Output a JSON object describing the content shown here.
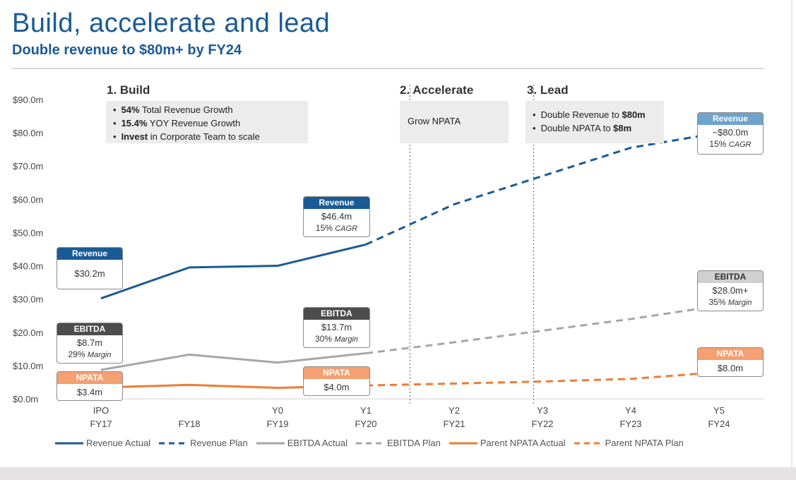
{
  "header": {
    "title": "Build, accelerate and lead",
    "subtitle": "Double revenue to $80m+ by FY24"
  },
  "phases": [
    {
      "label": "1. Build",
      "bullets": [
        {
          "bold": "54%",
          "text": " Total Revenue Growth"
        },
        {
          "bold": "15.4%",
          "text": " YOY Revenue Growth"
        },
        {
          "bold": "Invest",
          "text": " in Corporate Team to scale"
        }
      ]
    },
    {
      "label": "2. Accelerate",
      "text": "Grow NPATA"
    },
    {
      "label": "3. Lead",
      "bullets": [
        {
          "text": "Double Revenue to ",
          "bold": "$80m"
        },
        {
          "text": "Double NPATA to ",
          "bold": "$8m"
        }
      ]
    }
  ],
  "callouts": {
    "rev_ipo": {
      "title": "Revenue",
      "value": "$30.2m"
    },
    "ebitda_ipo": {
      "title": "EBITDA",
      "value": "$8.7m",
      "sub": "29%",
      "sub_italic": "Margin"
    },
    "npata_ipo": {
      "title": "NPATA",
      "value": "$3.4m"
    },
    "rev_y1": {
      "title": "Revenue",
      "value": "$46.4m",
      "sub": "15%",
      "sub_italic": "CAGR"
    },
    "ebitda_y1": {
      "title": "EBITDA",
      "value": "$13.7m",
      "sub": "30%",
      "sub_italic": "Margin"
    },
    "npata_y1": {
      "title": "NPATA",
      "value": "$4.0m"
    },
    "rev_y5": {
      "title": "Revenue",
      "value": "~$80.0m",
      "sub": "15%",
      "sub_italic": "CAGR"
    },
    "ebitda_y5": {
      "title": "EBITDA",
      "value": "$28.0m+",
      "sub": "35%",
      "sub_italic": "Margin"
    },
    "npata_y5": {
      "title": "NPATA",
      "value": "$8.0m"
    }
  },
  "colors": {
    "revenue": "#1a5b95",
    "revenue_light": "#6fa3cc",
    "ebitda": "#a6a6a6",
    "ebitda_dark": "#4d4d4d",
    "ebitda_light": "#d0d0d0",
    "npata": "#ed7d31",
    "npata_light": "#f4a073"
  },
  "chart_data": {
    "type": "line",
    "categories": [
      [
        "IPO",
        "FY17"
      ],
      [
        "",
        "FY18"
      ],
      [
        "Y0",
        "FY19"
      ],
      [
        "Y1",
        "FY20"
      ],
      [
        "Y2",
        "FY21"
      ],
      [
        "Y3",
        "FY22"
      ],
      [
        "Y4",
        "FY23"
      ],
      [
        "Y5",
        "FY24"
      ]
    ],
    "y_ticks": [
      "$0.0m",
      "$10.0m",
      "$20.0m",
      "$30.0m",
      "$40.0m",
      "$50.0m",
      "$60.0m",
      "$70.0m",
      "$80.0m",
      "$90.0m"
    ],
    "ylim": [
      0,
      90
    ],
    "series": [
      {
        "name": "Revenue Actual",
        "style": "solid",
        "color": "#1a5b95",
        "points": [
          [
            0,
            30.2
          ],
          [
            1,
            39.5
          ],
          [
            2,
            40.0
          ],
          [
            3,
            46.4
          ]
        ]
      },
      {
        "name": "Revenue Plan",
        "style": "dashed",
        "color": "#1a5b95",
        "points": [
          [
            3,
            46.4
          ],
          [
            4,
            58.5
          ],
          [
            5,
            67.0
          ],
          [
            6,
            75.5
          ],
          [
            7,
            80.0
          ]
        ]
      },
      {
        "name": "EBITDA Actual",
        "style": "solid",
        "color": "#a6a6a6",
        "points": [
          [
            0,
            8.7
          ],
          [
            1,
            13.3
          ],
          [
            2,
            10.9
          ],
          [
            3,
            13.7
          ]
        ]
      },
      {
        "name": "EBITDA Plan",
        "style": "dashed",
        "color": "#a6a6a6",
        "points": [
          [
            3,
            13.7
          ],
          [
            4,
            17.0
          ],
          [
            5,
            20.5
          ],
          [
            6,
            24.0
          ],
          [
            7,
            28.0
          ]
        ]
      },
      {
        "name": "Parent NPATA Actual",
        "style": "solid",
        "color": "#ed7d31",
        "points": [
          [
            0,
            3.4
          ],
          [
            1,
            4.2
          ],
          [
            2,
            3.3
          ],
          [
            3,
            4.0
          ]
        ]
      },
      {
        "name": "Parent NPATA Plan",
        "style": "dashed",
        "color": "#ed7d31",
        "points": [
          [
            3,
            4.0
          ],
          [
            4,
            4.6
          ],
          [
            5,
            5.2
          ],
          [
            6,
            6.0
          ],
          [
            7,
            8.0
          ]
        ]
      }
    ],
    "phase_dividers": [
      "between Y1 and Y2",
      "between Y2 and Y3"
    ]
  }
}
